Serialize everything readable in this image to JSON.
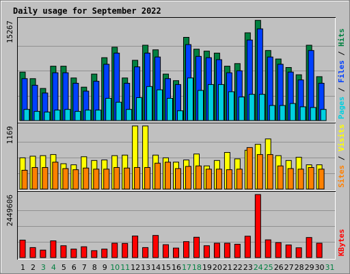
{
  "colors": {
    "background": "#c0c0c0",
    "panel": "#c0c0c0",
    "grid": "#909090",
    "title": "#0000c0",
    "pages": "#00d0e0",
    "files": "#0040ff",
    "hits": "#008040",
    "sites": "#ff8000",
    "visits": "#ffff00",
    "kbytes": "#ff0000",
    "weekday": "#000000",
    "weekend": "#008040"
  },
  "chart_data": {
    "type": "bar",
    "title": "Daily usage for September 2022",
    "categories": [
      "1",
      "2",
      "3",
      "4",
      "5",
      "6",
      "7",
      "8",
      "9",
      "10",
      "11",
      "12",
      "13",
      "14",
      "15",
      "16",
      "17",
      "18",
      "19",
      "20",
      "21",
      "22",
      "23",
      "24",
      "25",
      "26",
      "27",
      "28",
      "29",
      "30",
      "31"
    ],
    "weekend_days": [
      "3",
      "4",
      "10",
      "11",
      "17",
      "18",
      "24",
      "25",
      "31"
    ],
    "panels": [
      {
        "y_axis_max_label": "15267",
        "ylim": [
          0,
          15267
        ],
        "side_labels": [
          {
            "text": "Pages",
            "color_key": "pages"
          },
          {
            "text": " / ",
            "color_key": "weekday"
          },
          {
            "text": "Files",
            "color_key": "files"
          },
          {
            "text": " / ",
            "color_key": "weekday"
          },
          {
            "text": "Hits",
            "color_key": "hits"
          }
        ],
        "series": [
          {
            "name": "Hits",
            "color_key": "hits",
            "values": [
              7400,
              6400,
              4900,
              8300,
              8300,
              6500,
              5100,
              7100,
              9600,
              11200,
              6500,
              9200,
              11500,
              10800,
              7100,
              6100,
              12700,
              10900,
              10600,
              10300,
              8300,
              8700,
              13400,
              15300,
              10700,
              9400,
              8100,
              7000,
              11500,
              6700,
              0
            ]
          },
          {
            "name": "Files",
            "color_key": "files",
            "values": [
              6400,
              5400,
              4200,
              7300,
              7300,
              5700,
              4500,
              6000,
              8600,
              10300,
              5700,
              8200,
              10300,
              9700,
              6400,
              5500,
              11600,
              9800,
              9600,
              9300,
              7300,
              7600,
              12300,
              14000,
              9700,
              8600,
              7400,
              6200,
              10700,
              5700,
              0
            ]
          },
          {
            "name": "Pages",
            "color_key": "pages",
            "values": [
              1700,
              1400,
              1300,
              1600,
              1700,
              1400,
              1600,
              1600,
              3400,
              2800,
              1700,
              3500,
              5200,
              4700,
              3400,
              1500,
              6500,
              4600,
              5500,
              5500,
              4400,
              3600,
              4000,
              4000,
              2300,
              2300,
              2600,
              2100,
              2000,
              1700,
              0
            ]
          }
        ]
      },
      {
        "y_axis_max_label": "1169",
        "ylim": [
          0,
          1169
        ],
        "side_labels": [
          {
            "text": "Sites",
            "color_key": "sites"
          },
          {
            "text": " / ",
            "color_key": "weekday"
          },
          {
            "text": "Visits",
            "color_key": "visits"
          }
        ],
        "series": [
          {
            "name": "Visits",
            "color_key": "visits",
            "values": [
              580,
              610,
              620,
              640,
              470,
              450,
              600,
              530,
              540,
              620,
              630,
              1170,
              1170,
              630,
              580,
              500,
              540,
              650,
              430,
              530,
              680,
              560,
              720,
              830,
              930,
              620,
              530,
              590,
              450,
              450,
              0
            ]
          },
          {
            "name": "Sites",
            "color_key": "sites",
            "values": [
              350,
              400,
              400,
              500,
              380,
              360,
              390,
              370,
              370,
              400,
              390,
              400,
              400,
              480,
              500,
              380,
              420,
              430,
              370,
              370,
              360,
              370,
              770,
              640,
              640,
              430,
              380,
              370,
              400,
              370,
              0
            ]
          }
        ]
      },
      {
        "y_axis_max_label": "2449606",
        "ylim": [
          0,
          2449606
        ],
        "side_labels": [
          {
            "text": "KBytes",
            "color_key": "kbytes"
          }
        ],
        "series": [
          {
            "name": "KBytes",
            "color_key": "kbytes",
            "values": [
              680000,
              390000,
              290000,
              650000,
              460000,
              330000,
              420000,
              270000,
              330000,
              560000,
              550000,
              840000,
              390000,
              860000,
              500000,
              370000,
              620000,
              790000,
              460000,
              560000,
              560000,
              520000,
              830000,
              2449606,
              690000,
              580000,
              490000,
              380000,
              780000,
              560000,
              0
            ]
          }
        ]
      }
    ]
  }
}
